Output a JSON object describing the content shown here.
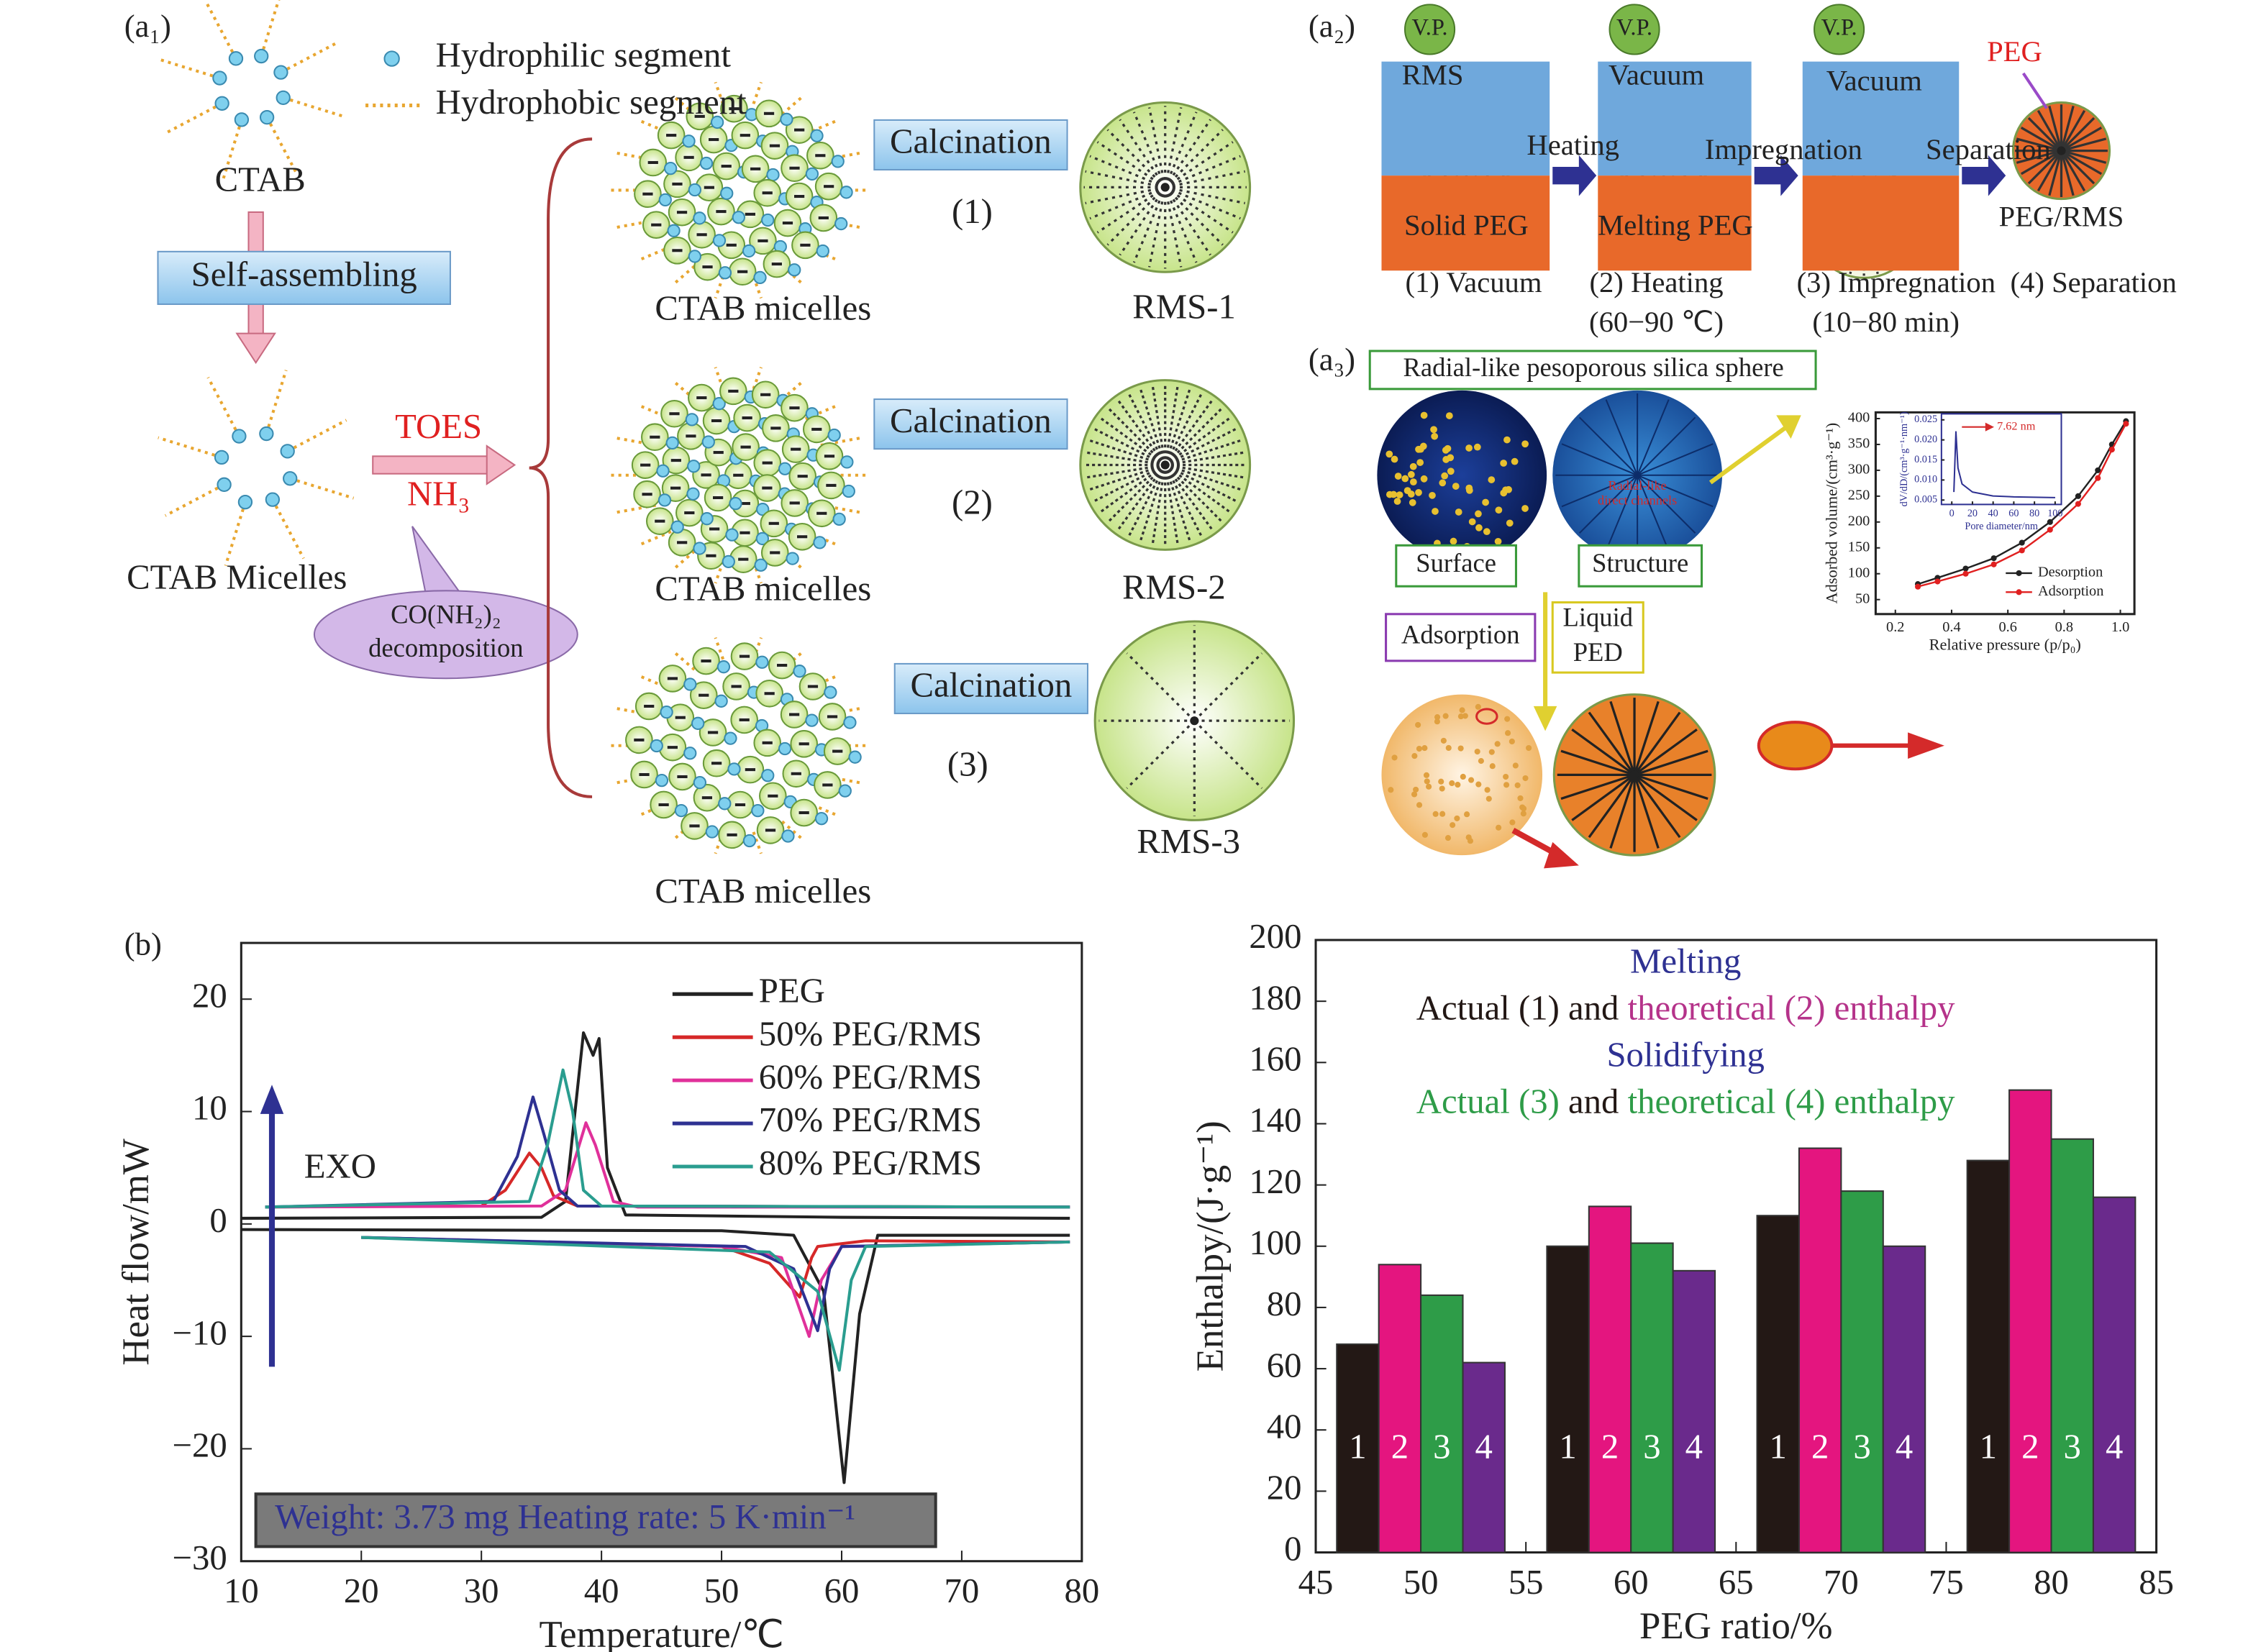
{
  "diagram": {
    "a1": {
      "label": "(a₁)",
      "legend": [
        "Hydrophilic segment",
        "Hydrophobic segment"
      ],
      "ctab": "CTAB",
      "self_assembling": "Self-assembling",
      "ctab_micelles": "CTAB Micelles",
      "reagents": [
        "TOES",
        "NH₃"
      ],
      "callout": [
        "CO(NH₂)₂",
        "decomposition"
      ],
      "routes": [
        {
          "micelles": "CTAB micelles",
          "step": "Calcination",
          "number": "(1)",
          "product": "RMS-1"
        },
        {
          "micelles": "CTAB micelles",
          "step": "Calcination",
          "number": "(2)",
          "product": "RMS-2"
        },
        {
          "micelles": "CTAB micelles",
          "step": "Calcination",
          "number": "(3)",
          "product": "RMS-3"
        }
      ]
    },
    "a2": {
      "label": "(a₂)",
      "pumps": [
        "V.P.",
        "V.P.",
        "V.P."
      ],
      "chambers": [
        "RMS",
        "Vacuum",
        "Vacuum"
      ],
      "beds": [
        "Solid PEG",
        "Melting PEG"
      ],
      "arrows": [
        "Heating",
        "Impregnation",
        "Separation"
      ],
      "peg": "PEG",
      "product": "PEG/RMS",
      "steps": [
        [
          "(1) Vacuum"
        ],
        [
          "(2) Heating",
          "(60−90 ℃)"
        ],
        [
          "(3) Impregnation",
          "(10−80 min)"
        ],
        [
          "(4) Separation"
        ]
      ]
    },
    "a3": {
      "label": "(a₃)",
      "title": "Radial-like pesoporous silica sphere",
      "channels": [
        "Radial-like",
        "direct channels"
      ],
      "boxes": [
        "Surface",
        "Structure",
        "Adsorption"
      ],
      "liquid": [
        "Liquid",
        "PED"
      ]
    }
  },
  "chart_data": [
    {
      "type": "line",
      "panel_label": "(b)",
      "x_label": "Temperature/℃",
      "y_label": "Heat flow/mW",
      "xlim": [
        10,
        80
      ],
      "xticks": [
        10,
        20,
        30,
        40,
        50,
        60,
        70,
        80
      ],
      "ylim": [
        -30,
        25
      ],
      "yticks": [
        {
          "value": -30,
          "label": "−30"
        },
        {
          "value": -20,
          "label": "−20"
        },
        {
          "value": -10,
          "label": "−10"
        },
        0,
        10,
        20
      ],
      "legend": "upper right",
      "exo_label": "EXO",
      "annotation": "Weight: 3.73 mg Heating rate: 5 K·min⁻¹",
      "series": [
        {
          "name": "PEG",
          "color": "#222222",
          "x": [
            10,
            35,
            37,
            38.5,
            39.3,
            39.8,
            40.5,
            42,
            60,
            79,
            null,
            10,
            50,
            56,
            58.5,
            60.2,
            61.5,
            63,
            79
          ],
          "values": [
            0.5,
            0.6,
            2,
            17,
            15,
            16.5,
            5,
            0.8,
            0.6,
            0.5,
            null,
            -0.5,
            -0.6,
            -1,
            -6,
            -23,
            -8,
            -1,
            -1
          ]
        },
        {
          "name": "50% PEG/RMS",
          "color": "#d62828",
          "x": [
            12,
            30,
            32,
            34,
            35,
            36,
            38,
            79,
            null,
            20,
            50,
            54,
            56.5,
            57.5,
            58,
            62,
            79
          ],
          "values": [
            1.5,
            1.6,
            3,
            6.3,
            5,
            2.5,
            1.6,
            1.5,
            null,
            -1.2,
            -2,
            -3.5,
            -6.5,
            -3,
            -2,
            -1.5,
            -1.6
          ]
        },
        {
          "name": "60% PEG/RMS",
          "color": "#e0309a",
          "x": [
            12,
            35,
            37,
            38.7,
            39.5,
            41,
            43,
            79,
            null,
            20,
            50,
            55,
            57.3,
            58.3,
            60,
            79
          ],
          "values": [
            1.5,
            1.6,
            3,
            9,
            7,
            2,
            1.5,
            1.5,
            null,
            -1.2,
            -2,
            -3,
            -10,
            -5,
            -2,
            -1.6
          ]
        },
        {
          "name": "70% PEG/RMS",
          "color": "#2e3192",
          "x": [
            12,
            31,
            33,
            34.3,
            35.2,
            36.5,
            38,
            79,
            null,
            20,
            52,
            56,
            58,
            59,
            60,
            79
          ],
          "values": [
            1.5,
            2,
            6,
            11.3,
            8,
            3,
            1.6,
            1.5,
            null,
            -1.2,
            -2,
            -4,
            -9.5,
            -4,
            -2,
            -1.6
          ]
        },
        {
          "name": "80% PEG/RMS",
          "color": "#2a9d8f",
          "x": [
            12,
            34,
            35.5,
            36.8,
            37.6,
            38.5,
            40,
            79,
            null,
            20,
            54,
            58,
            59.8,
            60.8,
            62,
            79
          ],
          "values": [
            1.5,
            2,
            7,
            13.7,
            10,
            3,
            1.6,
            1.5,
            null,
            -1.2,
            -2.5,
            -6,
            -13,
            -5,
            -2,
            -1.6
          ]
        }
      ]
    },
    {
      "type": "bar",
      "x_label": "PEG ratio/%",
      "y_label": "Enthalpy/(J·g⁻¹)",
      "xlim": [
        45,
        85
      ],
      "xticks": [
        45,
        50,
        55,
        60,
        65,
        70,
        75,
        80,
        85
      ],
      "ylim": [
        0,
        200
      ],
      "yticks": [
        0,
        20,
        40,
        60,
        80,
        100,
        120,
        140,
        160,
        180,
        200
      ],
      "x": [
        50,
        60,
        70,
        80
      ],
      "annotations": [
        [
          {
            "text": "Melting",
            "color": "#2e3192"
          }
        ],
        [
          {
            "text": "Actual (1) and ",
            "color": "#231815"
          },
          {
            "text": "theoretical (2) enthalpy",
            "color": "#b5338a"
          }
        ],
        [
          {
            "text": "Solidifying",
            "color": "#2e3192"
          }
        ],
        [
          {
            "text": "Actual (3)",
            "color": "#2e9c48"
          },
          {
            "text": " and ",
            "color": "#231815"
          },
          {
            "text": "theoretical (4) enthalpy",
            "color": "#2e9c48"
          }
        ]
      ],
      "series": [
        {
          "name": "1",
          "color": "#231815",
          "values": [
            68,
            100,
            110,
            128
          ]
        },
        {
          "name": "2",
          "color": "#e4157f",
          "values": [
            94,
            113,
            132,
            151
          ]
        },
        {
          "name": "3",
          "color": "#2e9c48",
          "values": [
            84,
            101,
            118,
            135
          ]
        },
        {
          "name": "4",
          "color": "#6a2a8c",
          "values": [
            62,
            92,
            100,
            116
          ]
        }
      ]
    },
    {
      "type": "line",
      "x_label": "Relative pressure (p/p₀)",
      "y_label": "Adsorbed volume/(cm³·g⁻¹)",
      "xlim": [
        0.13,
        1.05
      ],
      "xticks": [
        0.2,
        0.4,
        0.6,
        0.8,
        {
          "value": 1,
          "label": "1.0"
        }
      ],
      "ylim": [
        22,
        412
      ],
      "yticks": [
        50,
        100,
        150,
        200,
        250,
        300,
        350,
        400
      ],
      "legend": "lower right",
      "markers": true,
      "series": [
        {
          "name": "Desorption",
          "color": "#222222",
          "x": [
            0.28,
            0.35,
            0.45,
            0.55,
            0.65,
            0.75,
            0.85,
            0.92,
            0.97,
            1.02
          ],
          "values": [
            80,
            92,
            110,
            130,
            160,
            200,
            250,
            300,
            350,
            395
          ]
        },
        {
          "name": "Adsorption",
          "color": "#e02020",
          "x": [
            0.28,
            0.35,
            0.45,
            0.55,
            0.65,
            0.75,
            0.85,
            0.92,
            0.97,
            1.02
          ],
          "values": [
            75,
            85,
            100,
            118,
            145,
            185,
            235,
            285,
            340,
            390
          ]
        }
      ]
    },
    {
      "type": "line",
      "x_label": "Pore diameter/nm",
      "y_label": "dV/dD/(cm³·g⁻¹·nm⁻¹)",
      "xlim": [
        -10,
        106
      ],
      "xticks": [
        0,
        20,
        40,
        60,
        80,
        100
      ],
      "ylim": [
        0.0039,
        0.0265
      ],
      "yticks": [
        0.005,
        {
          "value": 0.01,
          "label": "0.010"
        },
        0.015,
        {
          "value": 0.02,
          "label": "0.020"
        },
        0.025
      ],
      "annotation": "7.62 nm",
      "series": [
        {
          "name": "Pore size distribution",
          "color": "#2e3192",
          "x": [
            2,
            4,
            6,
            10,
            20,
            40,
            60,
            100
          ],
          "values": [
            0.007,
            0.022,
            0.013,
            0.009,
            0.007,
            0.006,
            0.0058,
            0.0056
          ]
        }
      ]
    }
  ]
}
